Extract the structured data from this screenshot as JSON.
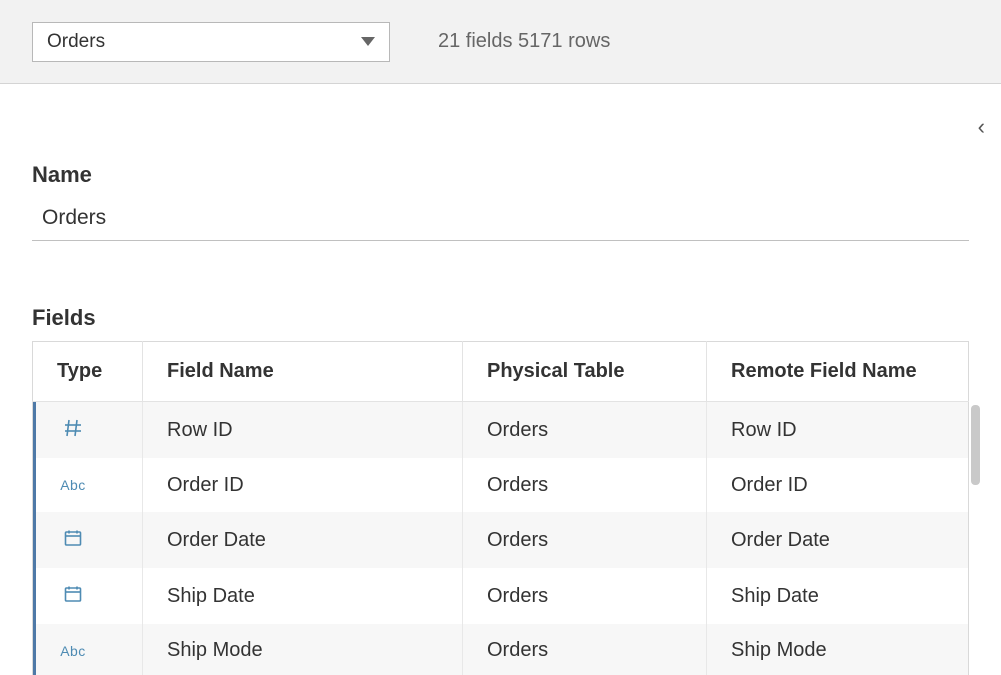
{
  "topbar": {
    "selected_table": "Orders",
    "meta": "21 fields 5171 rows"
  },
  "name_section": {
    "label": "Name",
    "value": "Orders"
  },
  "fields_section": {
    "label": "Fields",
    "columns": [
      "Type",
      "Field Name",
      "Physical Table",
      "Remote Field Name"
    ],
    "rows": [
      {
        "type": "number",
        "type_label": "#",
        "field_name": "Row ID",
        "physical_table": "Orders",
        "remote_field_name": "Row ID"
      },
      {
        "type": "string",
        "type_label": "Abc",
        "field_name": "Order ID",
        "physical_table": "Orders",
        "remote_field_name": "Order ID"
      },
      {
        "type": "date",
        "type_label": "date",
        "field_name": "Order Date",
        "physical_table": "Orders",
        "remote_field_name": "Order Date"
      },
      {
        "type": "date",
        "type_label": "date",
        "field_name": "Ship Date",
        "physical_table": "Orders",
        "remote_field_name": "Ship Date"
      },
      {
        "type": "string",
        "type_label": "Abc",
        "field_name": "Ship Mode",
        "physical_table": "Orders",
        "remote_field_name": "Ship Mode"
      }
    ],
    "icon_color": "#4e8bb3",
    "accent_bar_color": "#4e79a7",
    "stripe_colors": {
      "odd": "#f7f7f7",
      "even": "#ffffff"
    }
  }
}
